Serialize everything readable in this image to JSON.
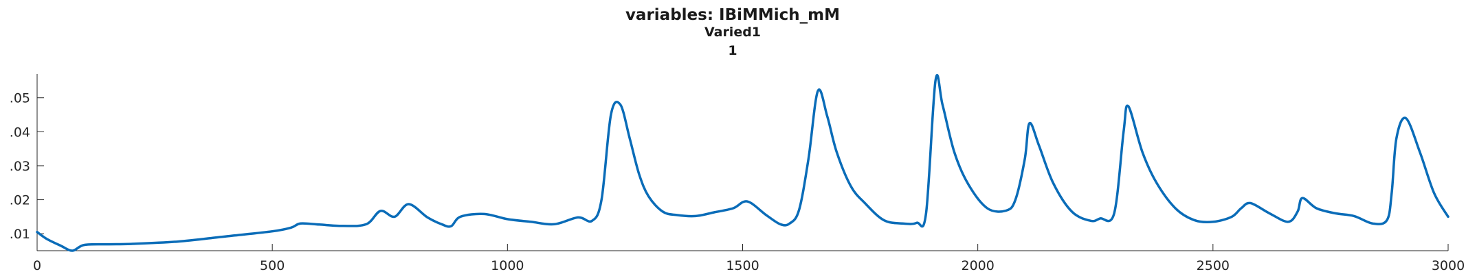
{
  "chart_data": {
    "type": "line",
    "title": "variables: IBiMMich_mM",
    "subtitle_lines": [
      "Varied1",
      "1"
    ],
    "xlabel": "",
    "ylabel": "",
    "xlim": [
      0,
      3000
    ],
    "ylim": [
      0.005,
      0.057
    ],
    "xticks": [
      0,
      500,
      1000,
      1500,
      2000,
      2500,
      3000
    ],
    "xtick_labels": [
      "0",
      "500",
      "1000",
      "1500",
      "2000",
      "2500",
      "3000"
    ],
    "yticks": [
      0.01,
      0.02,
      0.03,
      0.04,
      0.05
    ],
    "ytick_labels": [
      ".01",
      ".02",
      ".03",
      ".04",
      ".05"
    ],
    "grid": false,
    "series": [
      {
        "color": "#0a6cb8",
        "x": [
          0,
          20,
          50,
          75,
          100,
          150,
          200,
          300,
          400,
          500,
          540,
          560,
          600,
          650,
          700,
          730,
          760,
          790,
          830,
          860,
          880,
          900,
          950,
          1000,
          1050,
          1100,
          1150,
          1180,
          1200,
          1220,
          1240,
          1260,
          1280,
          1300,
          1330,
          1360,
          1400,
          1440,
          1480,
          1510,
          1550,
          1580,
          1600,
          1620,
          1640,
          1660,
          1680,
          1700,
          1730,
          1760,
          1800,
          1840,
          1870,
          1890,
          1910,
          1925,
          1950,
          1980,
          2020,
          2060,
          2080,
          2100,
          2110,
          2130,
          2160,
          2200,
          2240,
          2260,
          2290,
          2310,
          2320,
          2350,
          2380,
          2420,
          2460,
          2500,
          2540,
          2560,
          2580,
          2620,
          2660,
          2680,
          2690,
          2720,
          2760,
          2800,
          2840,
          2870,
          2880,
          2890,
          2910,
          2940,
          2970,
          3000
        ],
        "values": [
          0.0105,
          0.0085,
          0.0065,
          0.005,
          0.0067,
          0.0069,
          0.007,
          0.0077,
          0.0092,
          0.0107,
          0.0118,
          0.013,
          0.0127,
          0.0123,
          0.0128,
          0.0167,
          0.015,
          0.0187,
          0.0148,
          0.0128,
          0.0122,
          0.015,
          0.0158,
          0.0143,
          0.0135,
          0.0128,
          0.0148,
          0.0138,
          0.02,
          0.045,
          0.048,
          0.038,
          0.0275,
          0.021,
          0.0165,
          0.0155,
          0.0152,
          0.0163,
          0.0175,
          0.0195,
          0.0155,
          0.0128,
          0.013,
          0.017,
          0.032,
          0.052,
          0.0445,
          0.034,
          0.024,
          0.019,
          0.014,
          0.013,
          0.0132,
          0.016,
          0.055,
          0.048,
          0.034,
          0.0245,
          0.0175,
          0.0168,
          0.02,
          0.032,
          0.0425,
          0.036,
          0.025,
          0.0165,
          0.0138,
          0.0145,
          0.016,
          0.04,
          0.0475,
          0.034,
          0.025,
          0.0175,
          0.014,
          0.0135,
          0.015,
          0.0175,
          0.019,
          0.016,
          0.0135,
          0.0165,
          0.0205,
          0.0175,
          0.016,
          0.0152,
          0.013,
          0.014,
          0.022,
          0.038,
          0.044,
          0.034,
          0.022,
          0.015
        ]
      }
    ]
  }
}
